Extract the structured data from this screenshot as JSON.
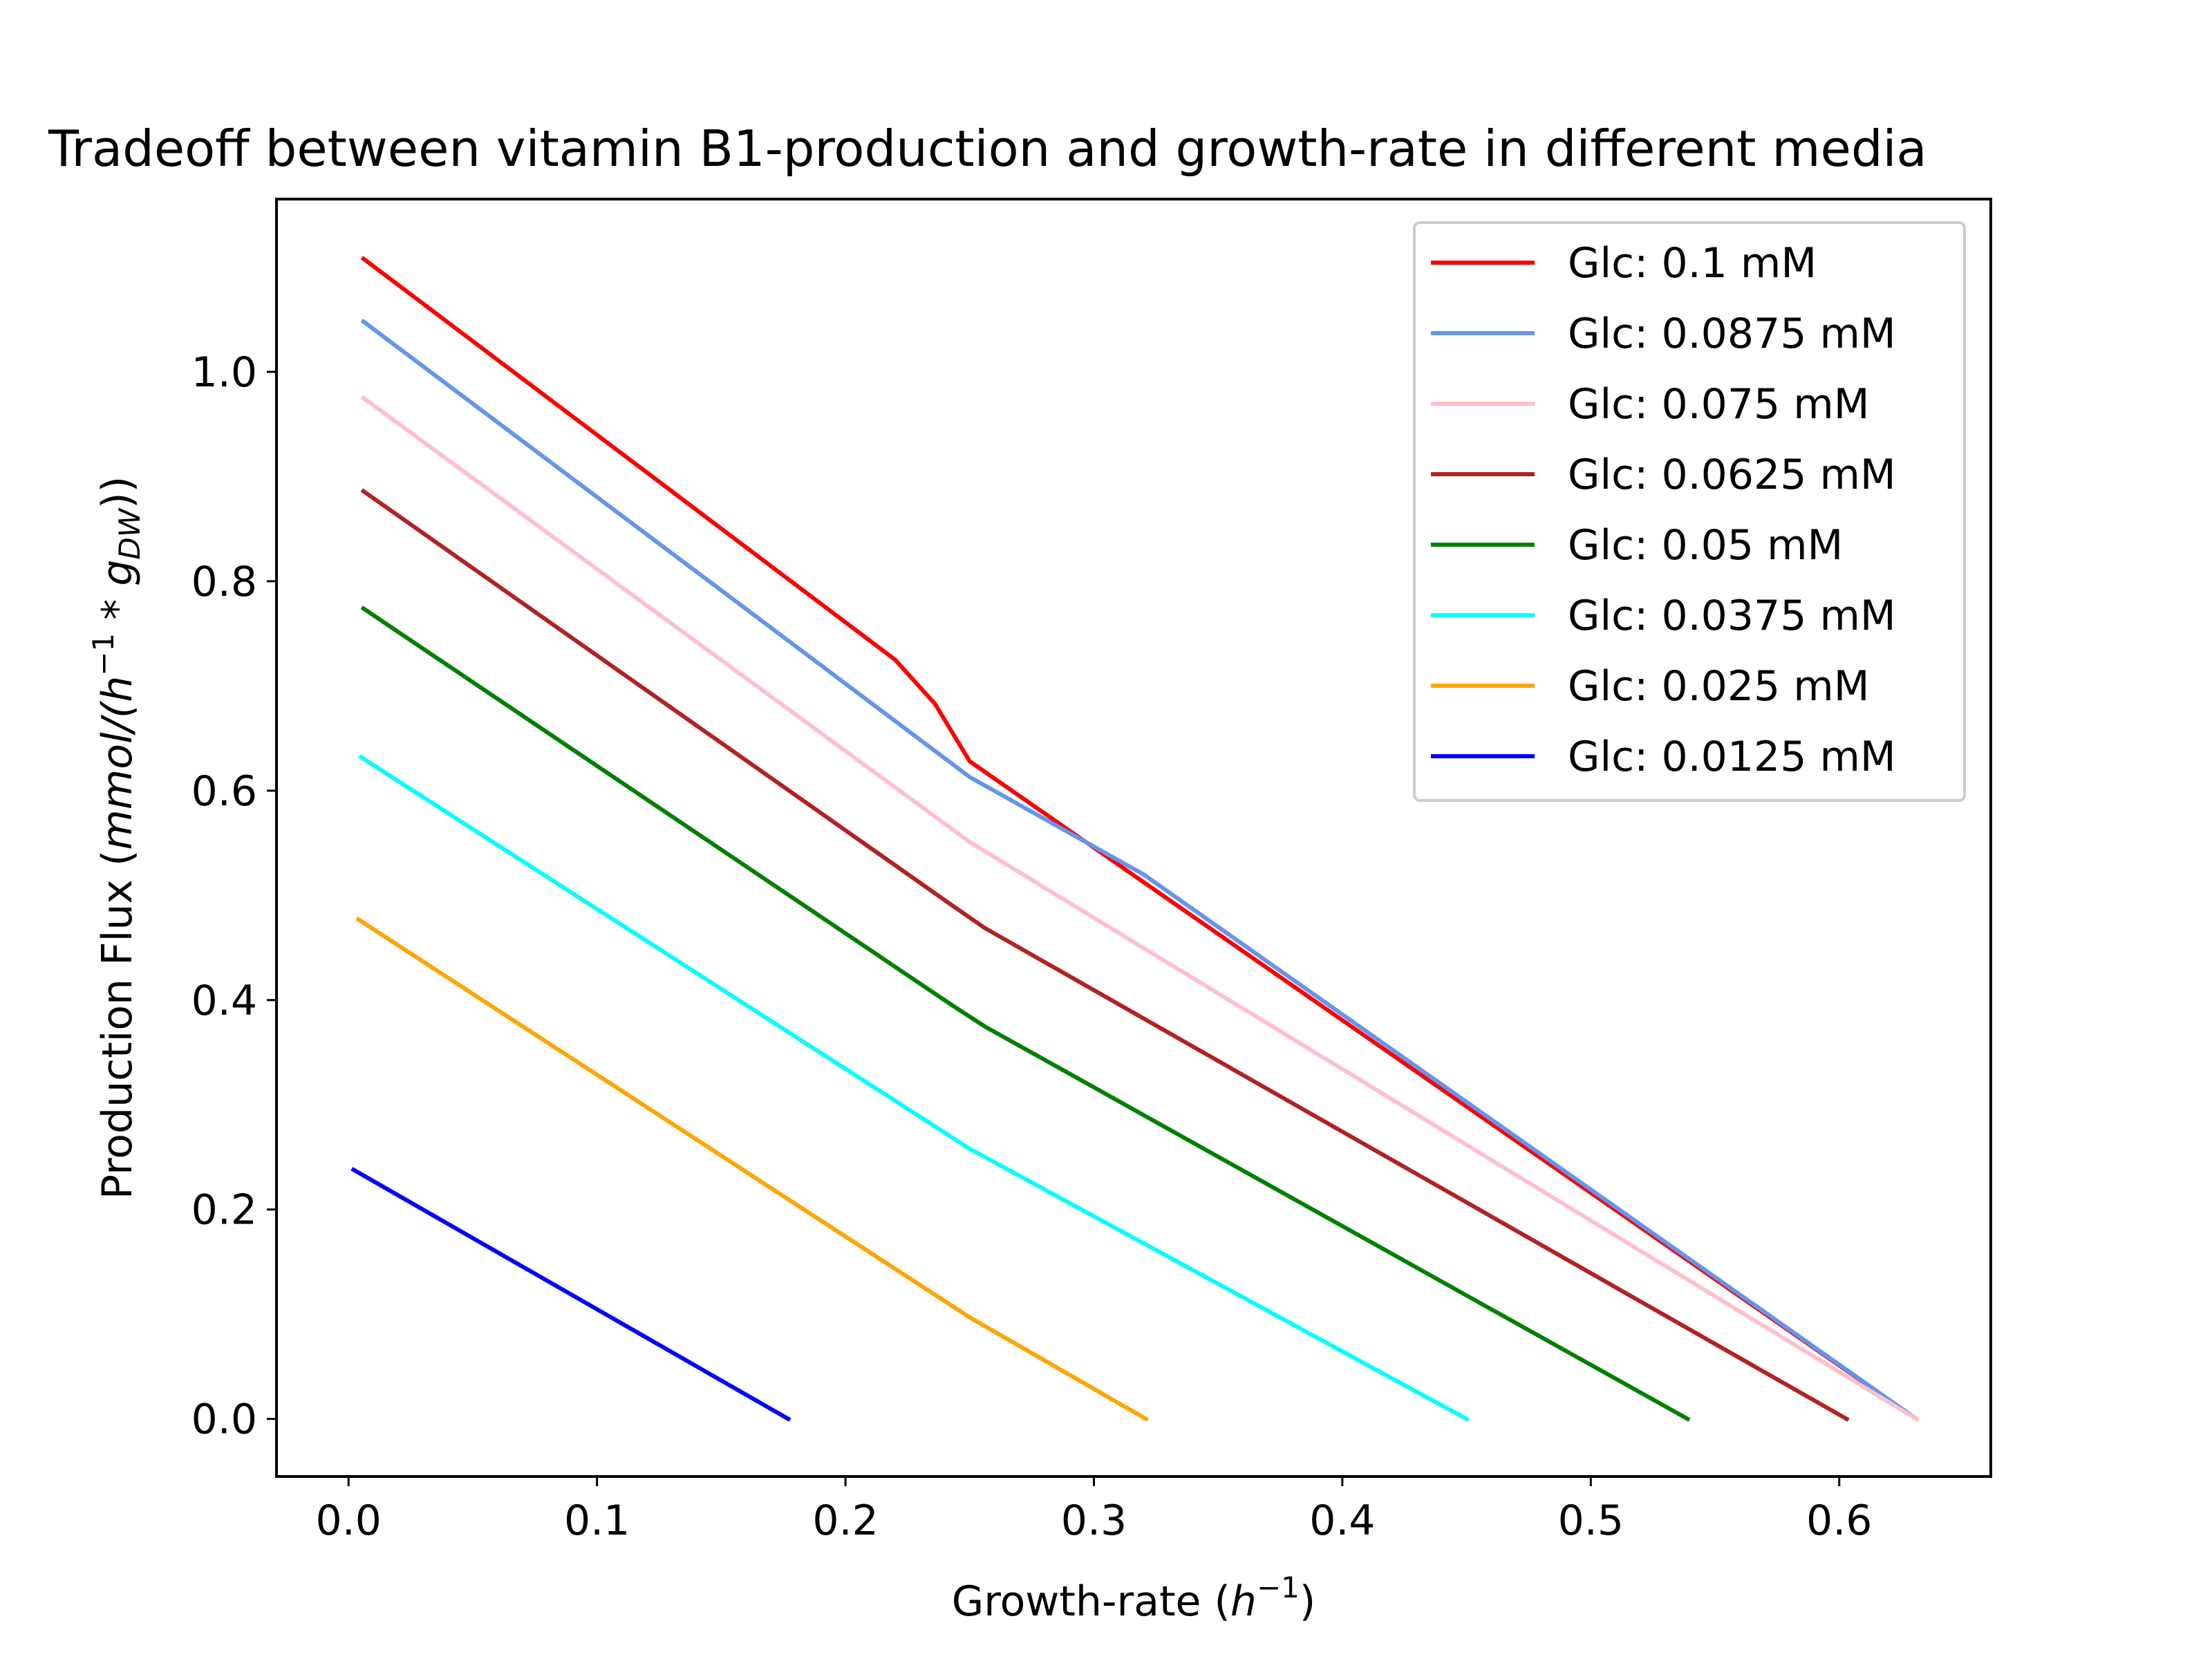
{
  "chart_data": {
    "type": "line",
    "title": "Tradeoff between vitamin B1-production and growth-rate in different media",
    "xlabel": "Growth-rate (h⁻¹)",
    "xlabel_text": "Growth-rate (",
    "xlabel_math": "h",
    "xlabel_sup": "−1",
    "xlabel_close": ")",
    "ylabel": "Production Flux (mmol/(h⁻¹ * g_DW))",
    "ylabel_text": "Production Flux (",
    "ylabel_math1": "mmol/(h",
    "ylabel_sup": "−1",
    "ylabel_math2": " * g",
    "ylabel_sub": "DW",
    "ylabel_close": "))",
    "xlim": [
      -0.029,
      0.661
    ],
    "ylim": [
      -0.055,
      1.165
    ],
    "xticks": [
      0.0,
      0.1,
      0.2,
      0.3,
      0.4,
      0.5,
      0.6
    ],
    "xtick_labels": [
      "0.0",
      "0.1",
      "0.2",
      "0.3",
      "0.4",
      "0.5",
      "0.6"
    ],
    "yticks": [
      0.0,
      0.2,
      0.4,
      0.6,
      0.8,
      1.0
    ],
    "ytick_labels": [
      "0.0",
      "0.2",
      "0.4",
      "0.6",
      "0.8",
      "1.0"
    ],
    "grid": false,
    "legend_position": "top-right",
    "series": [
      {
        "name": "Glc: 0.1 mM",
        "color": "#ff0000",
        "x": [
          0.006,
          0.22,
          0.236,
          0.25,
          0.631
        ],
        "y": [
          1.108,
          0.725,
          0.683,
          0.628,
          0.0
        ]
      },
      {
        "name": "Glc: 0.0875 mM",
        "color": "#6495ed",
        "x": [
          0.006,
          0.25,
          0.32,
          0.631
        ],
        "y": [
          1.048,
          0.613,
          0.52,
          0.0
        ]
      },
      {
        "name": "Glc: 0.075 mM",
        "color": "#ffc0cb",
        "x": [
          0.006,
          0.25,
          0.631
        ],
        "y": [
          0.975,
          0.551,
          0.0
        ]
      },
      {
        "name": "Glc: 0.0625 mM",
        "color": "#b22222",
        "x": [
          0.006,
          0.242,
          0.256,
          0.603
        ],
        "y": [
          0.886,
          0.492,
          0.469,
          0.0
        ]
      },
      {
        "name": "Glc: 0.05 mM",
        "color": "#008000",
        "x": [
          0.006,
          0.243,
          0.256,
          0.539
        ],
        "y": [
          0.774,
          0.395,
          0.375,
          0.0
        ]
      },
      {
        "name": "Glc: 0.0375 mM",
        "color": "#00ffff",
        "x": [
          0.005,
          0.25,
          0.45
        ],
        "y": [
          0.632,
          0.258,
          0.0
        ]
      },
      {
        "name": "Glc: 0.025 mM",
        "color": "#ffa500",
        "x": [
          0.004,
          0.25,
          0.321
        ],
        "y": [
          0.477,
          0.097,
          0.0
        ]
      },
      {
        "name": "Glc: 0.0125 mM",
        "color": "#0000ff",
        "x": [
          0.002,
          0.177
        ],
        "y": [
          0.238,
          0.0
        ]
      }
    ]
  }
}
